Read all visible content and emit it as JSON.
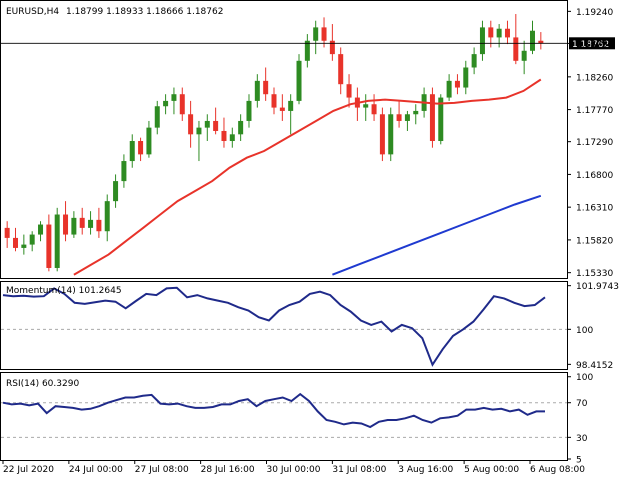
{
  "chart_data": [
    {
      "type": "candlestick",
      "symbol_label": "EURUSD,H4",
      "ohlc_label": "1.18799 1.18933 1.18666 1.18762",
      "current_price_label": "1.18762",
      "current_price": 1.18762,
      "ylim": [
        1.1528,
        1.1935
      ],
      "yticks": [
        "1.19240",
        "1.18760",
        "1.18260",
        "1.17770",
        "1.17290",
        "1.16800",
        "1.16310",
        "1.15820",
        "1.15330"
      ],
      "xticks": [
        "22 Jul 2020",
        "24 Jul 00:00",
        "27 Jul 08:00",
        "28 Jul 16:00",
        "30 Jul 00:00",
        "31 Jul 08:00",
        "3 Aug 16:00",
        "5 Aug 00:00",
        "6 Aug 08:00"
      ],
      "colors": {
        "up": "#2e8b22",
        "down": "#e8332a",
        "sma20": "#e8332a",
        "sma100": "#1f3ad0"
      },
      "candles": [
        [
          1.16,
          1.161,
          1.157,
          1.1585
        ],
        [
          1.1585,
          1.16,
          1.1565,
          1.157
        ],
        [
          1.157,
          1.159,
          1.156,
          1.1575
        ],
        [
          1.1575,
          1.1595,
          1.1565,
          1.159
        ],
        [
          1.159,
          1.161,
          1.158,
          1.1605
        ],
        [
          1.1605,
          1.162,
          1.1535,
          1.154
        ],
        [
          1.154,
          1.163,
          1.1535,
          1.162
        ],
        [
          1.162,
          1.164,
          1.158,
          1.159
        ],
        [
          1.159,
          1.1625,
          1.1585,
          1.1615
        ],
        [
          1.1615,
          1.163,
          1.159,
          1.16
        ],
        [
          1.16,
          1.1625,
          1.159,
          1.1612
        ],
        [
          1.1612,
          1.163,
          1.1585,
          1.1595
        ],
        [
          1.1595,
          1.165,
          1.158,
          1.164
        ],
        [
          1.164,
          1.168,
          1.163,
          1.167
        ],
        [
          1.167,
          1.171,
          1.166,
          1.17
        ],
        [
          1.17,
          1.174,
          1.169,
          1.173
        ],
        [
          1.173,
          1.1735,
          1.17,
          1.171
        ],
        [
          1.171,
          1.176,
          1.1705,
          1.175
        ],
        [
          1.175,
          1.179,
          1.174,
          1.1782
        ],
        [
          1.1782,
          1.18,
          1.177,
          1.179
        ],
        [
          1.179,
          1.181,
          1.177,
          1.18
        ],
        [
          1.18,
          1.181,
          1.176,
          1.177
        ],
        [
          1.177,
          1.179,
          1.172,
          1.174
        ],
        [
          1.174,
          1.176,
          1.17,
          1.175
        ],
        [
          1.175,
          1.177,
          1.173,
          1.176
        ],
        [
          1.176,
          1.178,
          1.174,
          1.1745
        ],
        [
          1.1745,
          1.1765,
          1.172,
          1.173
        ],
        [
          1.173,
          1.175,
          1.172,
          1.174
        ],
        [
          1.174,
          1.177,
          1.173,
          1.176
        ],
        [
          1.176,
          1.18,
          1.175,
          1.179
        ],
        [
          1.179,
          1.183,
          1.178,
          1.182
        ],
        [
          1.182,
          1.184,
          1.179,
          1.18
        ],
        [
          1.18,
          1.181,
          1.177,
          1.178
        ],
        [
          1.178,
          1.18,
          1.176,
          1.1775
        ],
        [
          1.1775,
          1.18,
          1.174,
          1.179
        ],
        [
          1.179,
          1.186,
          1.1785,
          1.185
        ],
        [
          1.185,
          1.189,
          1.184,
          1.188
        ],
        [
          1.188,
          1.191,
          1.186,
          1.19
        ],
        [
          1.19,
          1.1915,
          1.187,
          1.188
        ],
        [
          1.188,
          1.1905,
          1.185,
          1.186
        ],
        [
          1.186,
          1.187,
          1.18,
          1.1815
        ],
        [
          1.1815,
          1.183,
          1.178,
          1.1795
        ],
        [
          1.1795,
          1.181,
          1.176,
          1.178
        ],
        [
          1.178,
          1.18,
          1.176,
          1.1785
        ],
        [
          1.1785,
          1.18,
          1.176,
          1.177
        ],
        [
          1.177,
          1.178,
          1.17,
          1.171
        ],
        [
          1.171,
          1.178,
          1.17,
          1.177
        ],
        [
          1.177,
          1.179,
          1.175,
          1.176
        ],
        [
          1.176,
          1.1775,
          1.1745,
          1.177
        ],
        [
          1.177,
          1.1785,
          1.1755,
          1.1775
        ],
        [
          1.1775,
          1.181,
          1.1765,
          1.18
        ],
        [
          1.18,
          1.181,
          1.172,
          1.173
        ],
        [
          1.173,
          1.18,
          1.1725,
          1.1795
        ],
        [
          1.1795,
          1.183,
          1.179,
          1.182
        ],
        [
          1.182,
          1.183,
          1.18,
          1.181
        ],
        [
          1.181,
          1.185,
          1.18,
          1.184
        ],
        [
          1.184,
          1.187,
          1.183,
          1.186
        ],
        [
          1.186,
          1.191,
          1.185,
          1.19
        ],
        [
          1.19,
          1.191,
          1.187,
          1.1885
        ],
        [
          1.1885,
          1.1905,
          1.187,
          1.1898
        ],
        [
          1.1898,
          1.191,
          1.1875,
          1.1885
        ],
        [
          1.1885,
          1.192,
          1.1845,
          1.185
        ],
        [
          1.185,
          1.188,
          1.183,
          1.1865
        ],
        [
          1.1865,
          1.191,
          1.186,
          1.1895
        ],
        [
          1.188,
          1.1893,
          1.1867,
          1.1876
        ]
      ],
      "sma20": [
        1.153,
        1.1545,
        1.156,
        1.158,
        1.16,
        1.162,
        1.164,
        1.1655,
        1.167,
        1.169,
        1.1705,
        1.1715,
        1.173,
        1.1745,
        1.176,
        1.1775,
        1.1785,
        1.179,
        1.1792,
        1.179,
        1.1788,
        1.1786,
        1.1787,
        1.179,
        1.1792,
        1.1795,
        1.1805,
        1.1822
      ],
      "sma100": [
        1.153,
        1.1545,
        1.156,
        1.1575,
        1.159,
        1.1605,
        1.162,
        1.1635,
        1.1648
      ]
    },
    {
      "type": "line",
      "label": "Momentum(14) 101.2645",
      "ylim": [
        98.25,
        102.05
      ],
      "yticks": [
        "101.9743",
        "100",
        "98.4152"
      ],
      "series": [
        {
          "values": [
            101.55,
            101.5,
            101.52,
            101.48,
            101.5,
            101.85,
            101.6,
            101.2,
            101.15,
            101.22,
            101.3,
            101.25,
            100.95,
            101.28,
            101.6,
            101.55,
            101.85,
            101.88,
            101.45,
            101.55,
            101.4,
            101.3,
            101.2,
            101.0,
            100.85,
            100.55,
            100.4,
            100.85,
            101.1,
            101.25,
            101.6,
            101.7,
            101.55,
            101.1,
            100.8,
            100.4,
            100.2,
            100.35,
            99.9,
            100.2,
            100.05,
            99.6,
            98.4,
            99.1,
            99.7,
            100.0,
            100.35,
            100.9,
            101.5,
            101.4,
            101.2,
            101.05,
            101.1,
            101.45
          ]
        }
      ]
    },
    {
      "type": "line",
      "label": "RSI(14) 60.3290",
      "ylim": [
        5,
        102
      ],
      "yticks": [
        "100",
        "70",
        "30",
        "5"
      ],
      "levels": [
        70,
        30
      ],
      "series": [
        {
          "values": [
            70,
            68,
            69,
            67,
            69,
            58,
            66,
            65,
            64,
            62,
            63,
            66,
            70,
            73,
            76,
            76,
            78,
            79,
            69,
            68,
            69,
            66,
            64,
            64,
            65,
            68,
            68,
            72,
            74,
            66,
            72,
            74,
            76,
            72,
            80,
            72,
            60,
            50,
            48,
            45,
            47,
            46,
            42,
            48,
            50,
            50,
            52,
            55,
            50,
            47,
            52,
            53,
            55,
            62,
            62,
            64,
            62,
            63,
            60,
            62,
            56,
            60,
            60
          ]
        }
      ]
    }
  ]
}
